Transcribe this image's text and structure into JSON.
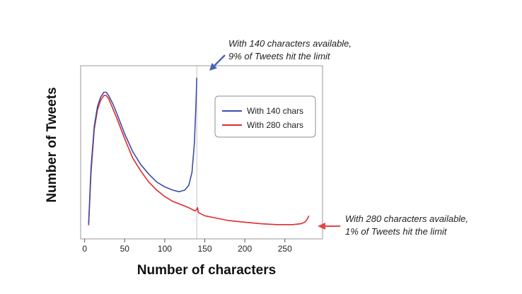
{
  "chart_data": {
    "type": "line",
    "title": "",
    "xlabel": "Number of characters",
    "ylabel": "Number of Tweets",
    "xlim": [
      -5,
      297
    ],
    "ylim": [
      0,
      100
    ],
    "x_ticks": [
      0,
      50,
      100,
      150,
      200,
      250
    ],
    "grid": false,
    "legend_position": "top-right",
    "marker_line_x": 140,
    "series": [
      {
        "name": "With 140 chars",
        "color": "#3a4fa8",
        "x": [
          5,
          8,
          12,
          16,
          20,
          24,
          27,
          30,
          35,
          40,
          50,
          60,
          70,
          80,
          90,
          100,
          110,
          118,
          125,
          130,
          134,
          137,
          139,
          140
        ],
        "y": [
          5,
          40,
          66,
          78,
          84,
          87,
          87,
          85,
          80,
          74,
          61,
          50,
          42,
          36,
          31,
          28,
          26,
          25,
          26,
          29,
          37,
          55,
          80,
          96
        ]
      },
      {
        "name": "With 280 chars",
        "color": "#e02a2a",
        "x": [
          5,
          8,
          12,
          16,
          20,
          24,
          27,
          30,
          35,
          40,
          50,
          60,
          70,
          80,
          90,
          100,
          110,
          120,
          130,
          138,
          140,
          141,
          142,
          150,
          160,
          180,
          200,
          220,
          240,
          260,
          270,
          275,
          278,
          280
        ],
        "y": [
          4,
          37,
          64,
          76,
          82,
          85,
          85,
          83,
          77,
          71,
          58,
          46,
          38,
          31,
          26,
          22,
          19,
          17,
          15,
          13,
          14,
          15,
          12,
          10,
          9,
          7,
          6,
          5,
          4.5,
          4.5,
          5,
          6,
          8,
          10
        ]
      }
    ],
    "annotations": [
      {
        "lines": [
          "With 140 characters available,",
          "9% of Tweets hit the limit"
        ],
        "color": "#4a62b8"
      },
      {
        "lines": [
          "With 280 characters available,",
          "1% of Tweets hit the limit"
        ],
        "color": "#e24545"
      }
    ]
  }
}
